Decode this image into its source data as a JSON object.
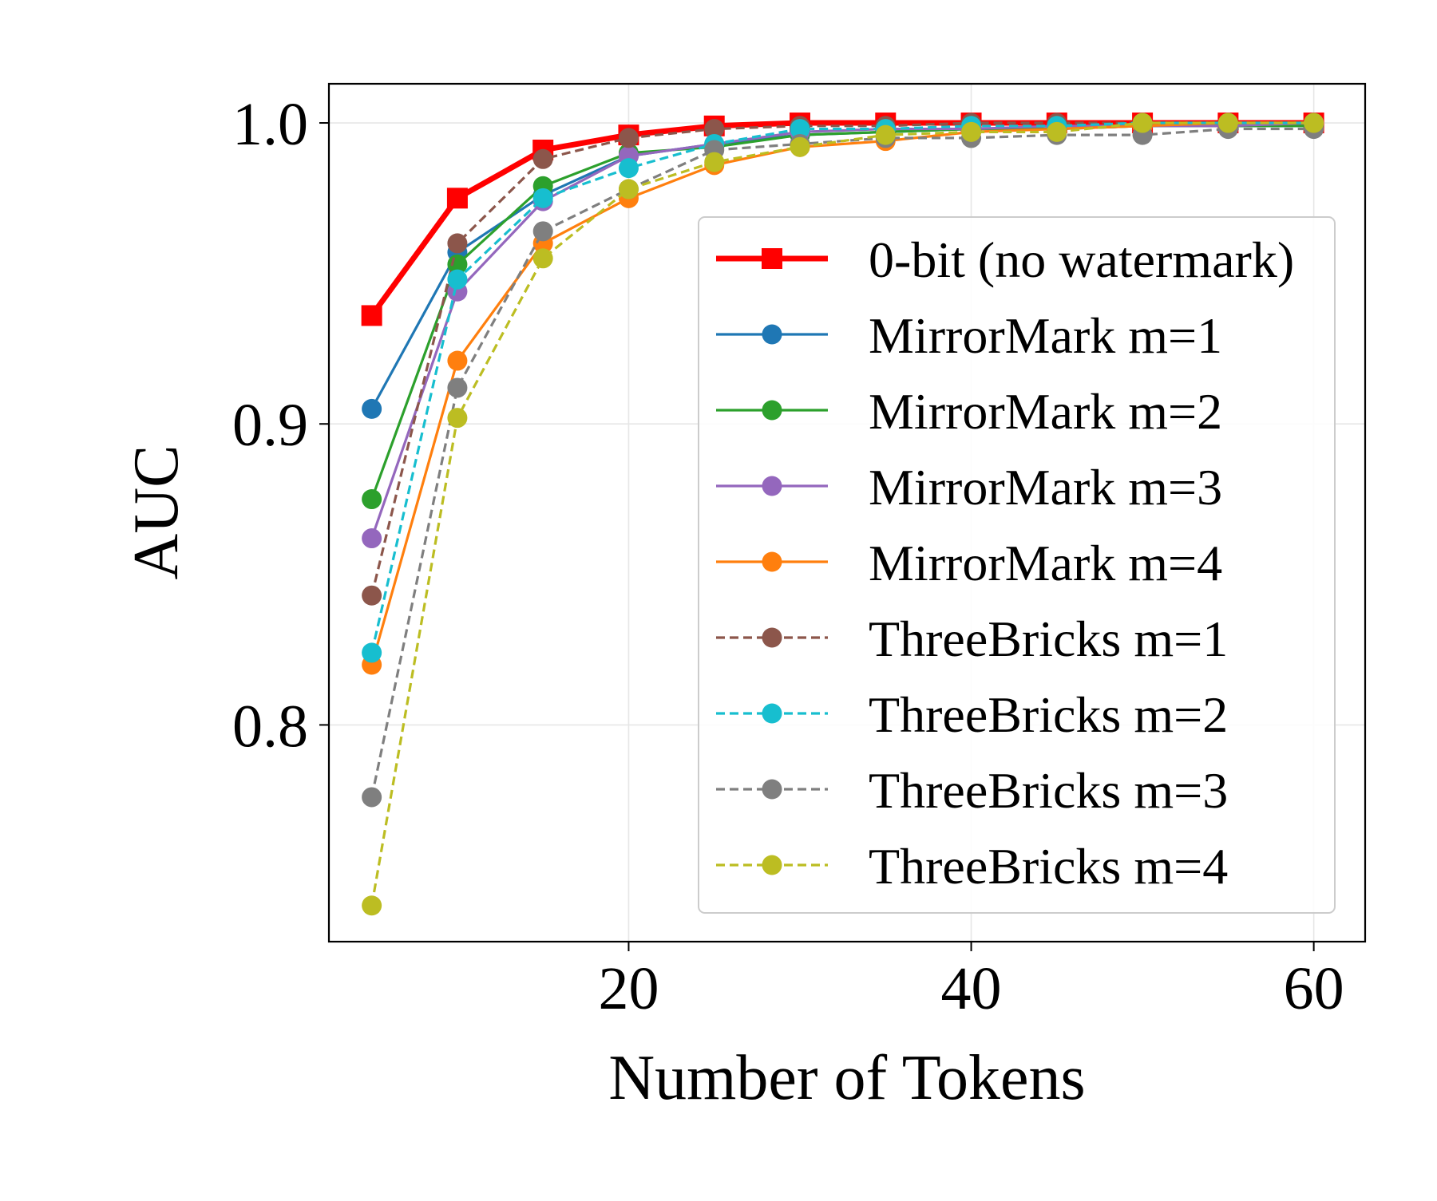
{
  "chart_data": {
    "type": "line",
    "title": "",
    "xlabel": "Number of Tokens",
    "ylabel": "AUC",
    "x": [
      5,
      10,
      15,
      20,
      25,
      30,
      35,
      40,
      45,
      50,
      55,
      60
    ],
    "xlim": [
      2.5,
      63
    ],
    "ylim": [
      0.728,
      1.013
    ],
    "xticks": [
      20,
      40,
      60
    ],
    "xtick_labels": [
      "20",
      "40",
      "60"
    ],
    "yticks": [
      0.8,
      0.9,
      1.0
    ],
    "ytick_labels": [
      "0.8",
      "0.9",
      "1.0"
    ],
    "grid": true,
    "legend_position": "center-right",
    "series": [
      {
        "name": "0-bit (no watermark)",
        "color": "#ff0000",
        "dash": "solid",
        "marker": "square",
        "bold": true,
        "values": [
          0.936,
          0.975,
          0.991,
          0.996,
          0.999,
          1.0,
          1.0,
          1.0,
          1.0,
          1.0,
          1.0,
          1.0
        ]
      },
      {
        "name": "MirrorMark m=1",
        "color": "#1f77b4",
        "dash": "solid",
        "marker": "circle",
        "values": [
          0.905,
          0.957,
          0.976,
          0.989,
          0.993,
          0.996,
          0.997,
          0.998,
          0.998,
          0.999,
          0.999,
          0.999
        ]
      },
      {
        "name": "MirrorMark m=2",
        "color": "#2ca02c",
        "dash": "solid",
        "marker": "circle",
        "values": [
          0.875,
          0.953,
          0.979,
          0.99,
          0.992,
          0.996,
          0.997,
          0.998,
          0.998,
          0.999,
          0.999,
          0.999
        ]
      },
      {
        "name": "MirrorMark m=3",
        "color": "#9467bd",
        "dash": "solid",
        "marker": "circle",
        "values": [
          0.862,
          0.944,
          0.974,
          0.989,
          0.993,
          0.997,
          0.998,
          0.998,
          0.999,
          0.999,
          0.999,
          1.0
        ]
      },
      {
        "name": "MirrorMark m=4",
        "color": "#ff7f0e",
        "dash": "solid",
        "marker": "circle",
        "values": [
          0.82,
          0.921,
          0.96,
          0.975,
          0.986,
          0.992,
          0.994,
          0.997,
          0.998,
          0.999,
          1.0,
          1.0
        ]
      },
      {
        "name": "ThreeBricks m=1",
        "color": "#8c564b",
        "dash": "dashed",
        "marker": "circle",
        "values": [
          0.843,
          0.96,
          0.988,
          0.995,
          0.998,
          0.999,
          0.999,
          1.0,
          1.0,
          1.0,
          1.0,
          1.0
        ]
      },
      {
        "name": "ThreeBricks m=2",
        "color": "#17becf",
        "dash": "dashed",
        "marker": "circle",
        "values": [
          0.824,
          0.948,
          0.975,
          0.985,
          0.993,
          0.998,
          0.998,
          0.999,
          0.999,
          1.0,
          1.0,
          1.0
        ]
      },
      {
        "name": "ThreeBricks m=3",
        "color": "#7f7f7f",
        "dash": "dashed",
        "marker": "circle",
        "values": [
          0.776,
          0.912,
          0.964,
          0.978,
          0.991,
          0.993,
          0.995,
          0.995,
          0.996,
          0.996,
          0.998,
          0.998
        ]
      },
      {
        "name": "ThreeBricks m=4",
        "color": "#bcbd22",
        "dash": "dashed",
        "marker": "circle",
        "values": [
          0.74,
          0.902,
          0.955,
          0.978,
          0.987,
          0.992,
          0.996,
          0.997,
          0.997,
          1.0,
          1.0,
          1.0
        ]
      }
    ]
  }
}
